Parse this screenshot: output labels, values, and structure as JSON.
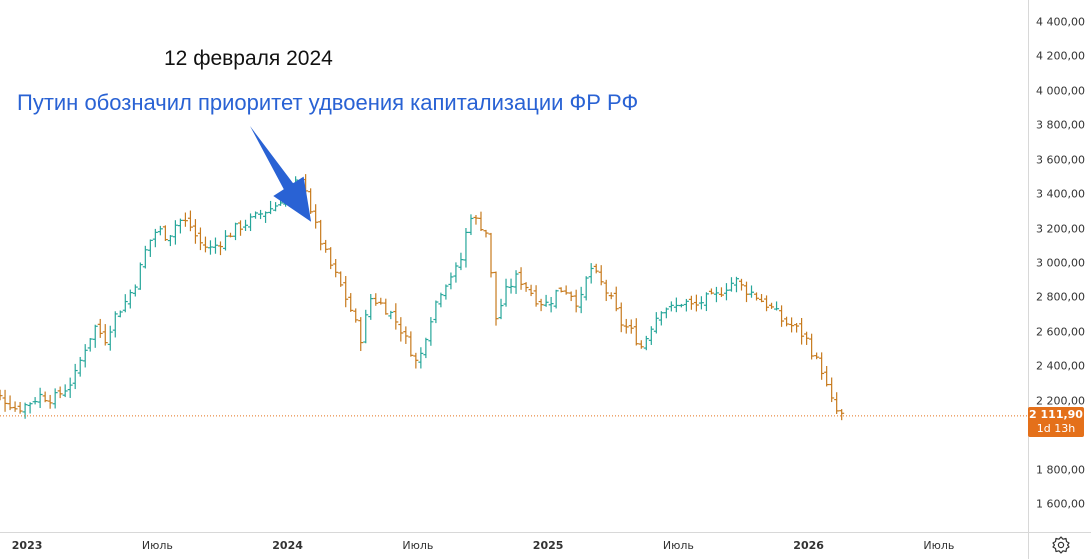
{
  "chart_data": {
    "type": "ohlc",
    "title": "",
    "xlabel": "",
    "ylabel": "",
    "ylim": [
      1500,
      4500
    ],
    "y_ticks": [
      "4 400,00",
      "4 200,00",
      "4 000,00",
      "3 800,00",
      "3 600,00",
      "3 400,00",
      "3 200,00",
      "3 000,00",
      "2 800,00",
      "2 600,00",
      "2 400,00",
      "2 200,00",
      "1 800,00",
      "1 600,00"
    ],
    "y_tick_values": [
      4400,
      4200,
      4000,
      3800,
      3600,
      3400,
      3200,
      3000,
      2800,
      2600,
      2400,
      2200,
      1800,
      1600
    ],
    "x_ticks": [
      {
        "label": "2023",
        "bold": true,
        "x": 2023.0
      },
      {
        "label": "Июль",
        "bold": false,
        "x": 2023.5
      },
      {
        "label": "2024",
        "bold": true,
        "x": 2024.0
      },
      {
        "label": "Июль",
        "bold": false,
        "x": 2024.5
      },
      {
        "label": "2025",
        "bold": true,
        "x": 2025.0
      },
      {
        "label": "Июль",
        "bold": false,
        "x": 2025.5
      },
      {
        "label": "2026",
        "bold": true,
        "x": 2026.0
      },
      {
        "label": "Июль",
        "bold": false,
        "x": 2026.5
      }
    ],
    "xlim": [
      2022.8,
      2026.75
    ],
    "close_path": [
      [
        2022.8,
        2180
      ],
      [
        2022.87,
        2240
      ],
      [
        2022.92,
        2200
      ],
      [
        2022.96,
        2150
      ],
      [
        2023.0,
        2180
      ],
      [
        2023.05,
        2230
      ],
      [
        2023.1,
        2210
      ],
      [
        2023.14,
        2260
      ],
      [
        2023.18,
        2330
      ],
      [
        2023.22,
        2500
      ],
      [
        2023.26,
        2630
      ],
      [
        2023.3,
        2560
      ],
      [
        2023.34,
        2700
      ],
      [
        2023.38,
        2780
      ],
      [
        2023.42,
        2900
      ],
      [
        2023.46,
        3100
      ],
      [
        2023.5,
        3200
      ],
      [
        2023.54,
        3150
      ],
      [
        2023.58,
        3250
      ],
      [
        2023.62,
        3230
      ],
      [
        2023.66,
        3120
      ],
      [
        2023.7,
        3080
      ],
      [
        2023.75,
        3130
      ],
      [
        2023.8,
        3200
      ],
      [
        2023.85,
        3240
      ],
      [
        2023.9,
        3290
      ],
      [
        2023.95,
        3330
      ],
      [
        2024.0,
        3420
      ],
      [
        2024.04,
        3470
      ],
      [
        2024.07,
        3440
      ],
      [
        2024.09,
        3300
      ],
      [
        2024.12,
        3150
      ],
      [
        2024.16,
        3000
      ],
      [
        2024.2,
        2880
      ],
      [
        2024.25,
        2700
      ],
      [
        2024.28,
        2560
      ],
      [
        2024.32,
        2800
      ],
      [
        2024.36,
        2760
      ],
      [
        2024.4,
        2700
      ],
      [
        2024.44,
        2600
      ],
      [
        2024.48,
        2470
      ],
      [
        2024.5,
        2400
      ],
      [
        2024.54,
        2640
      ],
      [
        2024.58,
        2820
      ],
      [
        2024.62,
        2920
      ],
      [
        2024.66,
        2980
      ],
      [
        2024.7,
        3290
      ],
      [
        2024.73,
        3230
      ],
      [
        2024.76,
        3200
      ],
      [
        2024.8,
        2680
      ],
      [
        2024.84,
        2840
      ],
      [
        2024.88,
        2920
      ],
      [
        2024.92,
        2860
      ],
      [
        2024.96,
        2780
      ],
      [
        2025.0,
        2760
      ],
      [
        2025.04,
        2850
      ],
      [
        2025.08,
        2840
      ],
      [
        2025.12,
        2750
      ],
      [
        2025.16,
        2980
      ],
      [
        2025.2,
        2890
      ],
      [
        2025.24,
        2790
      ],
      [
        2025.28,
        2650
      ],
      [
        2025.32,
        2600
      ],
      [
        2025.36,
        2510
      ],
      [
        2025.4,
        2650
      ],
      [
        2025.44,
        2750
      ],
      [
        2025.48,
        2730
      ],
      [
        2025.52,
        2780
      ],
      [
        2025.56,
        2740
      ],
      [
        2025.6,
        2790
      ],
      [
        2025.64,
        2800
      ],
      [
        2025.68,
        2860
      ],
      [
        2025.72,
        2900
      ],
      [
        2025.75,
        2850
      ],
      [
        2025.79,
        2820
      ],
      [
        2025.83,
        2770
      ],
      [
        2025.87,
        2720
      ],
      [
        2025.9,
        2660
      ],
      [
        2025.93,
        2640
      ],
      [
        2025.96,
        2610
      ],
      [
        2025.99,
        2560
      ],
      [
        2026.02,
        2460
      ],
      [
        2026.05,
        2380
      ],
      [
        2026.08,
        2220
      ],
      [
        2026.11,
        2130
      ],
      [
        2026.13,
        2112
      ]
    ],
    "last_price_label": "2 111,90",
    "last_price_value": 2111.9,
    "countdown_label": "1d 13h",
    "up_color": "#26a69a",
    "down_color": "#c77a1d",
    "price_line_color": "#e4701a",
    "grid": false,
    "annotations": {
      "date": "12 февраля 2024",
      "text": "Путин обозначил приоритет удвоения капитализации ФР РФ",
      "arrow_target": [
        2024.09,
        3240
      ],
      "arrow_color": "#2962d4"
    }
  },
  "toolbar": {
    "settings_icon": "gear-icon"
  }
}
